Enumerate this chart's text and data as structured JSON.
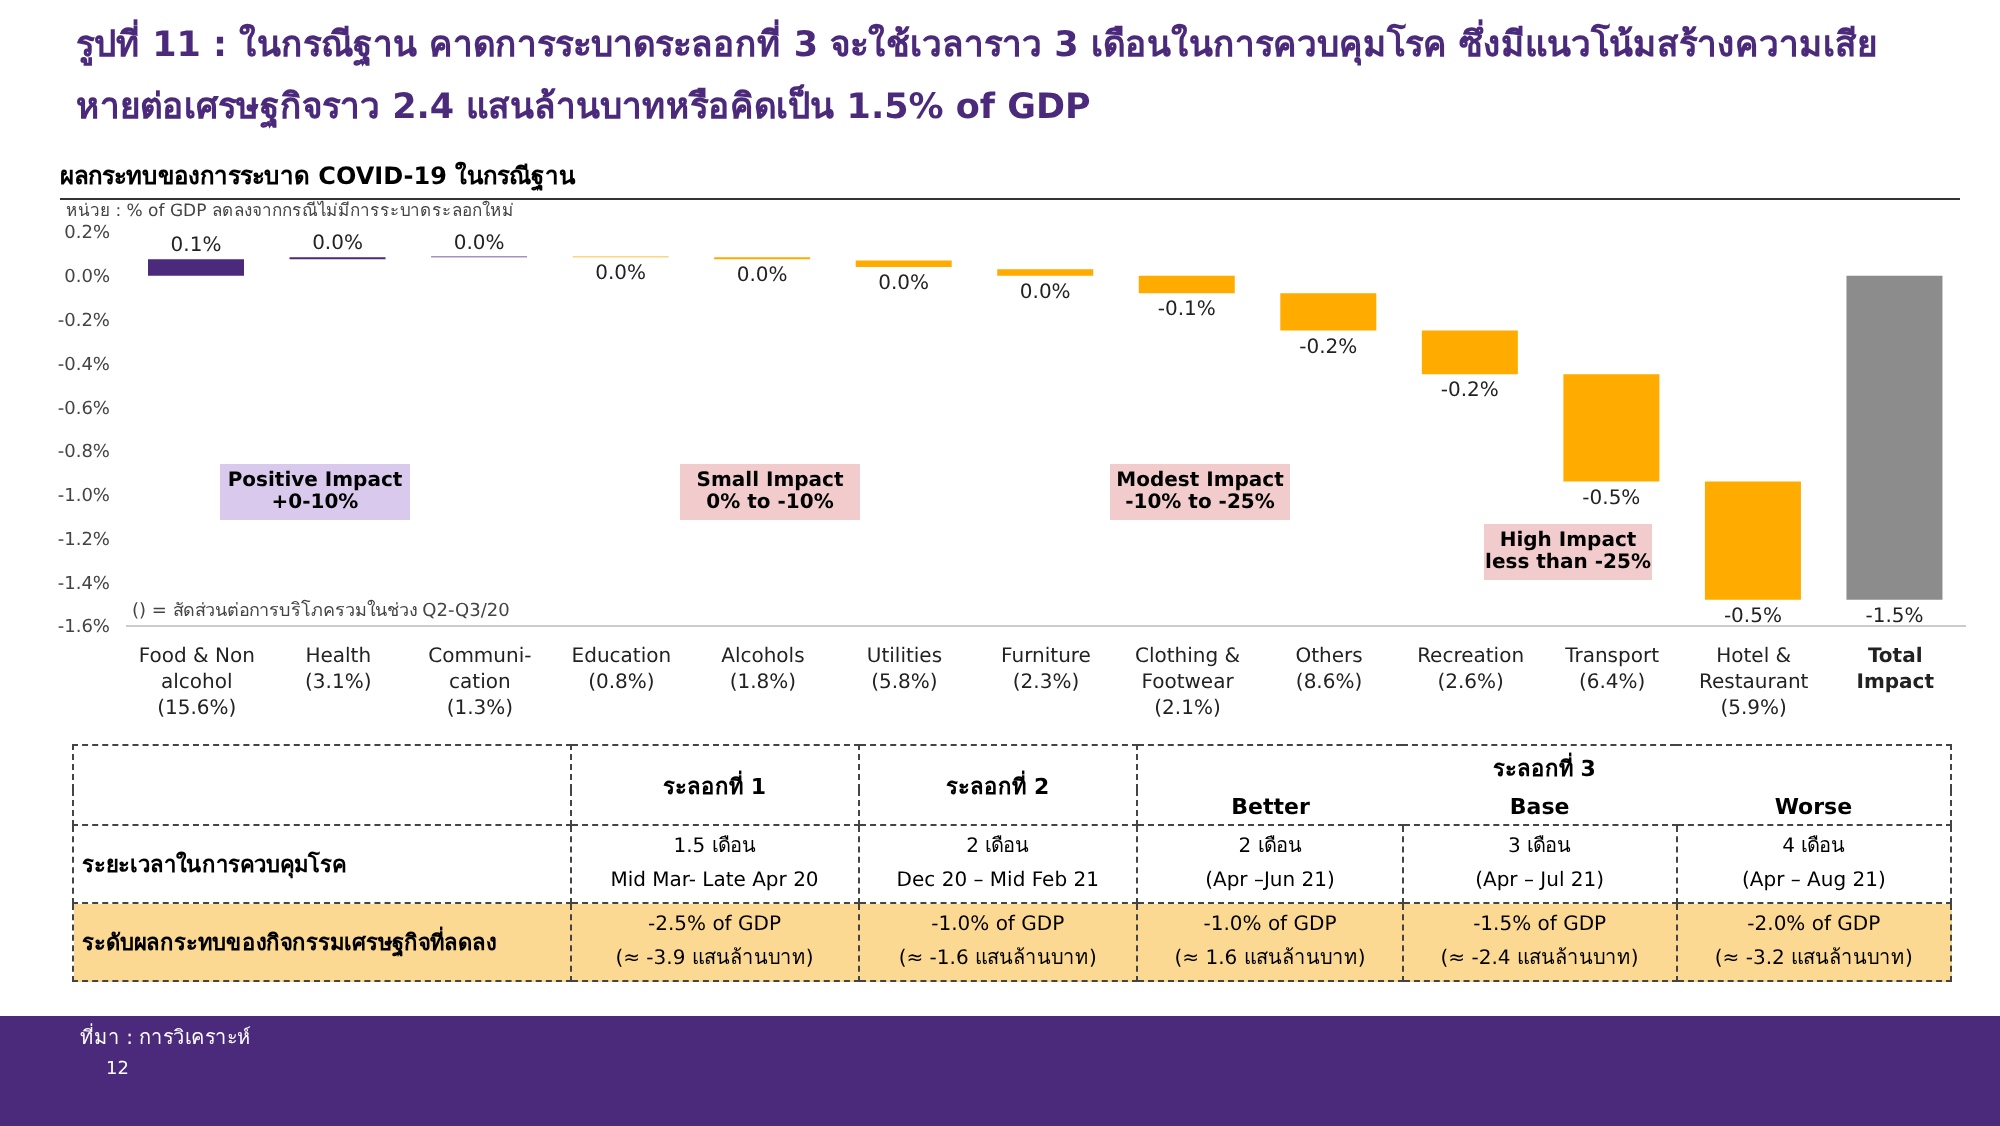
{
  "chart_data": [
    {
      "type": "bar",
      "title": "รูปที่ 11 : ในกรณีฐาน คาดการระบาดระลอกที่ 3 จะใช้เวลาราว 3 เดือนในการควบคุมโรค ซึ่งมีแนวโน้มสร้างความเสียหายต่อเศรษฐกิจราว 2.4 แสนล้านบาทหรือคิดเป็น 1.5% of GDP",
      "subtitle": "ผลกระทบของการระบาด COVID-19 ในกรณีฐาน",
      "ylabel": "หน่วย : % of GDP ลดลงจากกรณีไม่มีการระบาดระลอกใหม่",
      "categories": [
        "Food & Non\nalcohol\n(15.6%)",
        "Health\n(3.1%)",
        "Communi-\ncation\n(1.3%)",
        "Education\n(0.8%)",
        "Alcohols\n(1.8%)",
        "Utilities\n(5.8%)",
        "Furniture\n(2.3%)",
        "Clothing &\nFootwear\n(2.1%)",
        "Others\n(8.6%)",
        "Recreation\n(2.6%)",
        "Transport\n(6.4%)",
        "Hotel &\nRestaurant\n(5.9%)",
        "Total\nImpact"
      ],
      "base": [
        0,
        0.075,
        0.085,
        0.088,
        0.085,
        0.07,
        0.03,
        0,
        -0.08,
        -0.25,
        -0.45,
        -0.94,
        0
      ],
      "values": [
        0.075,
        0.01,
        0.003,
        -0.003,
        -0.01,
        -0.03,
        -0.03,
        -0.08,
        -0.17,
        -0.2,
        -0.49,
        -0.54,
        -1.48
      ],
      "value_labels": [
        "0.1%",
        "0.0%",
        "0.0%",
        "0.0%",
        "0.0%",
        "0.0%",
        "0.0%",
        "-0.1%",
        "-0.2%",
        "-0.2%",
        "-0.5%",
        "-0.5%",
        "-1.5%"
      ],
      "colors": [
        "#4b2a7b",
        "#4b2a7b",
        "#4b2a7b",
        "#ffab00",
        "#ffab00",
        "#ffab00",
        "#ffab00",
        "#ffab00",
        "#ffab00",
        "#ffab00",
        "#ffab00",
        "#ffab00",
        "#8c8c8c"
      ],
      "ylim": [
        -1.6,
        0.2
      ],
      "yticks": [
        {
          "value": 0.2,
          "label": "0.2%"
        },
        {
          "value": 0,
          "label": "0.0%"
        },
        {
          "value": -0.2,
          "label": "-0.2%"
        },
        {
          "value": -0.4,
          "label": "-0.4%"
        },
        {
          "value": -0.6,
          "label": "-0.6%"
        },
        {
          "value": -0.8,
          "label": "-0.8%"
        },
        {
          "value": -1,
          "label": "-1.0%"
        },
        {
          "value": -1.2,
          "label": "-1.2%"
        },
        {
          "value": -1.4,
          "label": "-1.4%"
        },
        {
          "value": -1.6,
          "label": "-1.6%"
        }
      ],
      "annotations": [
        "Positive Impact\n+0-10%",
        "Small Impact\n0% to -10%",
        "Modest Impact\n-10% to -25%",
        "High Impact\nless than -25%",
        "() = สัดส่วนต่อการบริโภครวมในช่วง Q2-Q3/20",
        "ที่มา : การวิเคราะห์",
        "12"
      ]
    },
    {
      "type": "other",
      "xlabel": "ระลอกที่ 3",
      "categories": [
        "ระลอกที่ 1",
        "ระลอกที่ 2",
        "Better",
        "Base",
        "Worse"
      ],
      "y_categories": [
        "ระยะเวลาในการควบคุมโรค",
        "ระดับผลกระทบของกิจกรรมเศรษฐกิจที่ลดลง"
      ],
      "cell_labels": [
        [
          "1.5 เดือน\nMid Mar- Late Apr 20",
          "2 เดือน\nDec 20 – Mid Feb 21",
          "2 เดือน\n(Apr –Jun 21)",
          "3 เดือน\n(Apr – Jul 21)",
          "4 เดือน\n(Apr – Aug 21)"
        ],
        [
          "-2.5% of GDP\n(≈ -3.9 แสนล้านบาท)",
          "-1.0% of GDP\n(≈ -1.6 แสนล้านบาท)",
          "-1.0% of GDP\n(≈ 1.6 แสนล้านบาท)",
          "-1.5% of GDP\n(≈ -2.4 แสนล้านบาท)",
          "-2.0% of GDP\n(≈ -3.2 แสนล้านบาท)"
        ]
      ]
    }
  ]
}
